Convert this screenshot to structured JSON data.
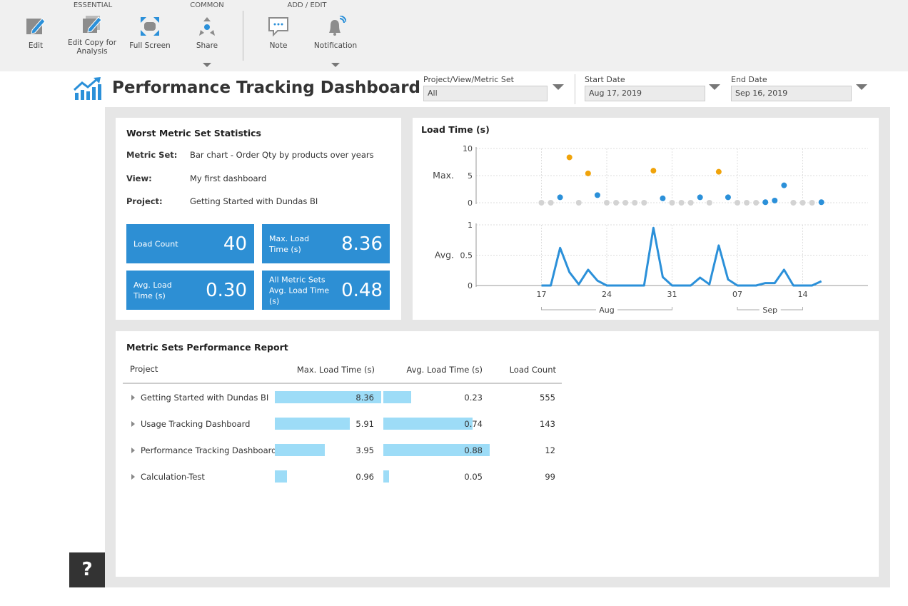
{
  "toolbar": {
    "groups": [
      {
        "label": "ESSENTIAL",
        "buttons": [
          "Edit",
          "Edit Copy for Analysis",
          "Full Screen"
        ]
      },
      {
        "label": "COMMON",
        "buttons": [
          "Share"
        ]
      },
      {
        "label": "ADD / EDIT",
        "buttons": [
          "Note",
          "Notification"
        ]
      }
    ]
  },
  "header": {
    "title": "Performance Tracking Dashboard",
    "filters": [
      {
        "label": "Project/View/Metric Set",
        "value": "All"
      },
      {
        "label": "Start Date",
        "value": "Aug 17, 2019"
      },
      {
        "label": "End Date",
        "value": "Sep 16, 2019"
      }
    ]
  },
  "stats": {
    "title": "Worst Metric Set Statistics",
    "fields": [
      {
        "label": "Metric Set:",
        "value": "Bar chart - Order Qty by products over years"
      },
      {
        "label": "View:",
        "value": "My first dashboard"
      },
      {
        "label": "Project:",
        "value": "Getting Started with Dundas BI"
      }
    ],
    "tiles": [
      {
        "label": "Load Count",
        "value": "40"
      },
      {
        "label": "Max. Load Time (s)",
        "value": "8.36"
      },
      {
        "label": "Avg. Load Time (s)",
        "value": "0.30"
      },
      {
        "label": "All Metric Sets Avg. Load Time (s)",
        "value": "0.48"
      }
    ]
  },
  "chart_data": [
    {
      "type": "scatter",
      "title": "Load Time (s)",
      "ylabel": "Max.",
      "x": [
        "Aug 17",
        "Aug 18",
        "Aug 19",
        "Aug 20",
        "Aug 21",
        "Aug 22",
        "Aug 23",
        "Aug 24",
        "Aug 25",
        "Aug 26",
        "Aug 27",
        "Aug 28",
        "Aug 29",
        "Aug 30",
        "Aug 31",
        "Sep 1",
        "Sep 2",
        "Sep 3",
        "Sep 4",
        "Sep 5",
        "Sep 6",
        "Sep 7",
        "Sep 8",
        "Sep 9",
        "Sep 10",
        "Sep 11",
        "Sep 12",
        "Sep 13",
        "Sep 14",
        "Sep 15",
        "Sep 16"
      ],
      "values": [
        0,
        0,
        1.0,
        8.36,
        0,
        5.4,
        1.4,
        0,
        0,
        0,
        0,
        0,
        5.9,
        0.8,
        0,
        0,
        0,
        1.0,
        0,
        5.7,
        1.0,
        0,
        0,
        0,
        0.1,
        0.4,
        3.2,
        0,
        0,
        0,
        0.1
      ],
      "point_colors": [
        "#d3d3d3",
        "#d3d3d3",
        "#2b90d9",
        "#f0a30a",
        "#d3d3d3",
        "#f0a30a",
        "#2b90d9",
        "#d3d3d3",
        "#d3d3d3",
        "#d3d3d3",
        "#d3d3d3",
        "#d3d3d3",
        "#f0a30a",
        "#2b90d9",
        "#d3d3d3",
        "#d3d3d3",
        "#d3d3d3",
        "#2b90d9",
        "#d3d3d3",
        "#f0a30a",
        "#2b90d9",
        "#d3d3d3",
        "#d3d3d3",
        "#d3d3d3",
        "#2b90d9",
        "#2b90d9",
        "#2b90d9",
        "#d3d3d3",
        "#d3d3d3",
        "#d3d3d3",
        "#2b90d9"
      ],
      "xlim": [
        "Aug 10",
        "Sep 21"
      ],
      "ylim": [
        0,
        10
      ],
      "yticks": [
        0,
        5,
        10
      ],
      "grid": true
    },
    {
      "type": "line",
      "ylabel": "Avg.",
      "color": "#2b90d9",
      "x": [
        "Aug 17",
        "Aug 18",
        "Aug 19",
        "Aug 20",
        "Aug 21",
        "Aug 22",
        "Aug 23",
        "Aug 24",
        "Aug 25",
        "Aug 26",
        "Aug 27",
        "Aug 28",
        "Aug 29",
        "Aug 30",
        "Aug 31",
        "Sep 1",
        "Sep 2",
        "Sep 3",
        "Sep 4",
        "Sep 5",
        "Sep 6",
        "Sep 7",
        "Sep 8",
        "Sep 9",
        "Sep 10",
        "Sep 11",
        "Sep 12",
        "Sep 13",
        "Sep 14",
        "Sep 15",
        "Sep 16"
      ],
      "values": [
        0,
        0,
        0.62,
        0.22,
        0.02,
        0.26,
        0.08,
        0,
        0,
        0,
        0,
        0,
        0.95,
        0.14,
        0,
        0,
        0,
        0.13,
        0.02,
        0.66,
        0.1,
        0,
        0,
        0,
        0.04,
        0.04,
        0.26,
        0,
        0,
        0,
        0.07
      ],
      "xlim": [
        "Aug 10",
        "Sep 21"
      ],
      "ylim": [
        0,
        1
      ],
      "yticks": [
        0,
        0.5,
        1
      ],
      "grid": true,
      "xticks": [
        {
          "value": "Aug 17",
          "label": "17"
        },
        {
          "value": "Aug 24",
          "label": "24"
        },
        {
          "value": "Aug 31",
          "label": "31"
        },
        {
          "value": "Sep 7",
          "label": "07"
        },
        {
          "value": "Sep 14",
          "label": "14"
        }
      ],
      "x_groups": [
        {
          "label": "Aug",
          "from": "Aug 17",
          "to": "Aug 31"
        },
        {
          "label": "Sep",
          "from": "Sep 7",
          "to": "Sep 14"
        }
      ]
    }
  ],
  "report": {
    "title": "Metric Sets Performance Report",
    "columns": [
      "Project",
      "Max. Load Time (s)",
      "Avg. Load Time (s)",
      "Load Count"
    ],
    "rows": [
      {
        "project": "Getting Started with Dundas BI",
        "max": 8.36,
        "avg": 0.23,
        "count": 555
      },
      {
        "project": "Usage Tracking Dashboard",
        "max": 5.91,
        "avg": 0.74,
        "count": 143
      },
      {
        "project": "Performance Tracking Dashboard",
        "max": 3.95,
        "avg": 0.88,
        "count": 12
      },
      {
        "project": "Calculation-Test",
        "max": 0.96,
        "avg": 0.05,
        "count": 99
      }
    ]
  },
  "help": "?"
}
